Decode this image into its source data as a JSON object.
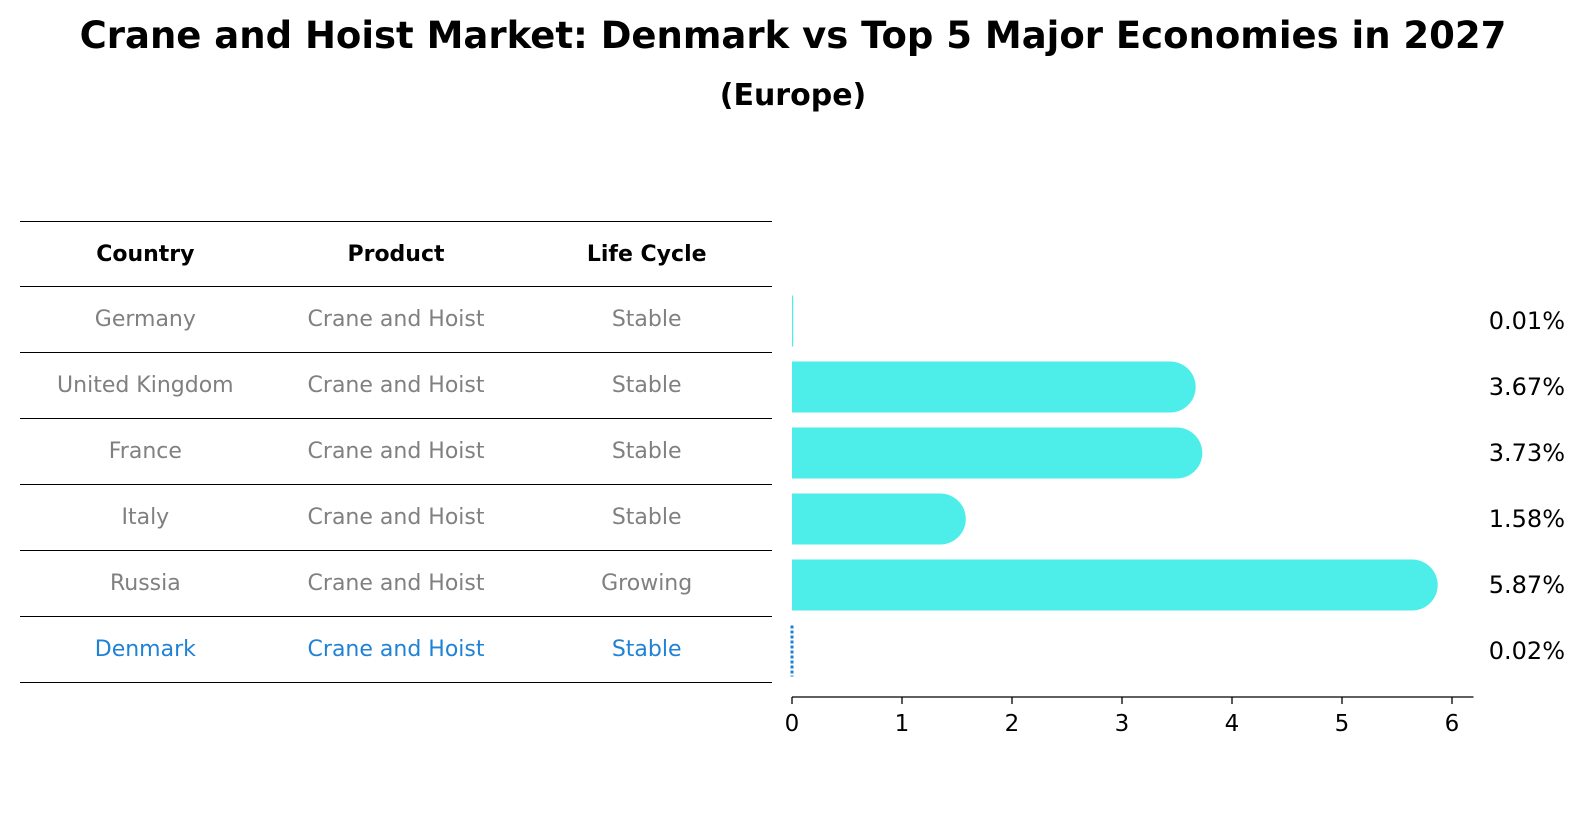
{
  "title": "Crane and Hoist Market: Denmark vs Top 5 Major Economies in 2027",
  "subtitle": "(Europe)",
  "table": {
    "headers": [
      "Country",
      "Product",
      "Life Cycle"
    ],
    "rows": [
      {
        "country": "Germany",
        "product": "Crane and Hoist",
        "life_cycle": "Stable"
      },
      {
        "country": "United Kingdom",
        "product": "Crane and Hoist",
        "life_cycle": "Stable"
      },
      {
        "country": "France",
        "product": "Crane and Hoist",
        "life_cycle": "Stable"
      },
      {
        "country": "Italy",
        "product": "Crane and Hoist",
        "life_cycle": "Stable"
      },
      {
        "country": "Russia",
        "product": "Crane and Hoist",
        "life_cycle": "Growing"
      },
      {
        "country": "Denmark",
        "product": "Crane and Hoist",
        "life_cycle": "Stable"
      }
    ]
  },
  "colors": {
    "bar": "#4deeea",
    "highlight": "#1f82d6",
    "muted_text": "#808080"
  },
  "chart_data": {
    "type": "bar",
    "orientation": "horizontal",
    "categories": [
      "Germany",
      "United Kingdom",
      "France",
      "Italy",
      "Russia",
      "Denmark"
    ],
    "values": [
      0.01,
      3.67,
      3.73,
      1.58,
      5.87,
      0.02
    ],
    "value_labels": [
      "0.01%",
      "3.67%",
      "3.73%",
      "1.58%",
      "5.87%",
      "0.02%"
    ],
    "highlight_category": "Denmark",
    "xlim": [
      0,
      6.15
    ],
    "xticks": [
      "0",
      "1",
      "2",
      "3",
      "4",
      "5",
      "6"
    ],
    "grid": false
  }
}
